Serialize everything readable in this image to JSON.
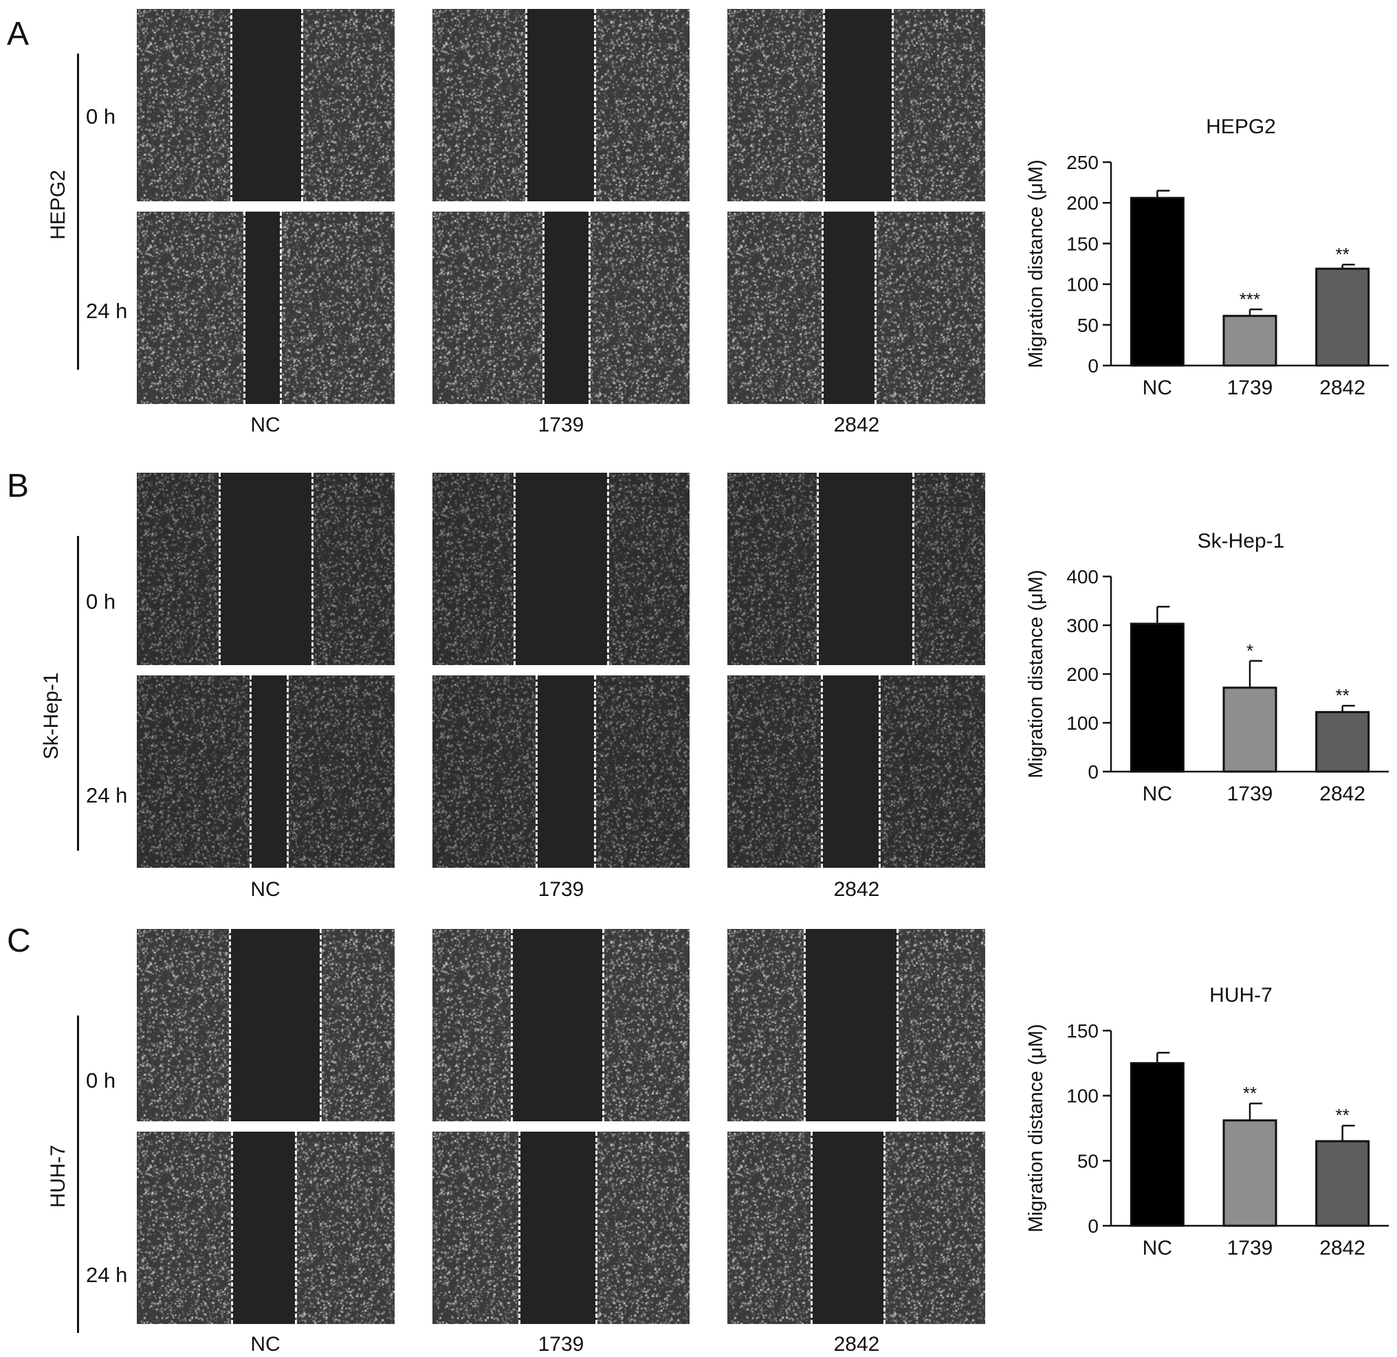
{
  "colors": {
    "nc_bar": "#000000",
    "b1739_bar": "#8e8e8e",
    "b2842_bar": "#5e5e5e",
    "wound_gap": "#232323",
    "dashed_line": "#f2f2f2"
  },
  "panels": [
    {
      "letter": "A",
      "cell_line": "HEPG2",
      "times": [
        "0 h",
        "24 h"
      ],
      "conditions": [
        "NC",
        "1739",
        "2842"
      ],
      "texture": "bright"
    },
    {
      "letter": "B",
      "cell_line": "Sk-Hep-1",
      "times": [
        "0 h",
        "24 h"
      ],
      "conditions": [
        "NC",
        "1739",
        "2842"
      ],
      "texture": "dark"
    },
    {
      "letter": "C",
      "cell_line": "HUH-7",
      "times": [
        "0 h",
        "24 h"
      ],
      "conditions": [
        "NC",
        "1739",
        "2842"
      ],
      "texture": "bright"
    }
  ],
  "chart_data": [
    {
      "type": "bar",
      "title": "HEPG2",
      "xlabel": "",
      "ylabel": "Migration distance (μM)",
      "categories": [
        "NC",
        "1739",
        "2842"
      ],
      "values": [
        206,
        61,
        119
      ],
      "error": [
        9,
        8,
        5
      ],
      "significance": [
        "",
        "***",
        "**"
      ],
      "ylim": [
        0,
        250
      ],
      "yticks": [
        0,
        50,
        100,
        150,
        200,
        250
      ],
      "grid": false,
      "legend": "none"
    },
    {
      "type": "bar",
      "title": "Sk-Hep-1",
      "xlabel": "",
      "ylabel": "Migration distance (μM)",
      "categories": [
        "NC",
        "1739",
        "2842"
      ],
      "values": [
        303,
        172,
        122
      ],
      "error": [
        35,
        55,
        13
      ],
      "significance": [
        "",
        "*",
        "**"
      ],
      "ylim": [
        0,
        400
      ],
      "yticks": [
        0,
        100,
        200,
        300,
        400
      ],
      "grid": false,
      "legend": "none"
    },
    {
      "type": "bar",
      "title": "HUH-7",
      "xlabel": "",
      "ylabel": "Migration distance (μM)",
      "categories": [
        "NC",
        "1739",
        "2842"
      ],
      "values": [
        125,
        81,
        65
      ],
      "error": [
        8,
        13,
        12
      ],
      "significance": [
        "",
        "**",
        "**"
      ],
      "ylim": [
        0,
        150
      ],
      "yticks": [
        0,
        50,
        100,
        150
      ],
      "grid": false,
      "legend": "none"
    }
  ]
}
